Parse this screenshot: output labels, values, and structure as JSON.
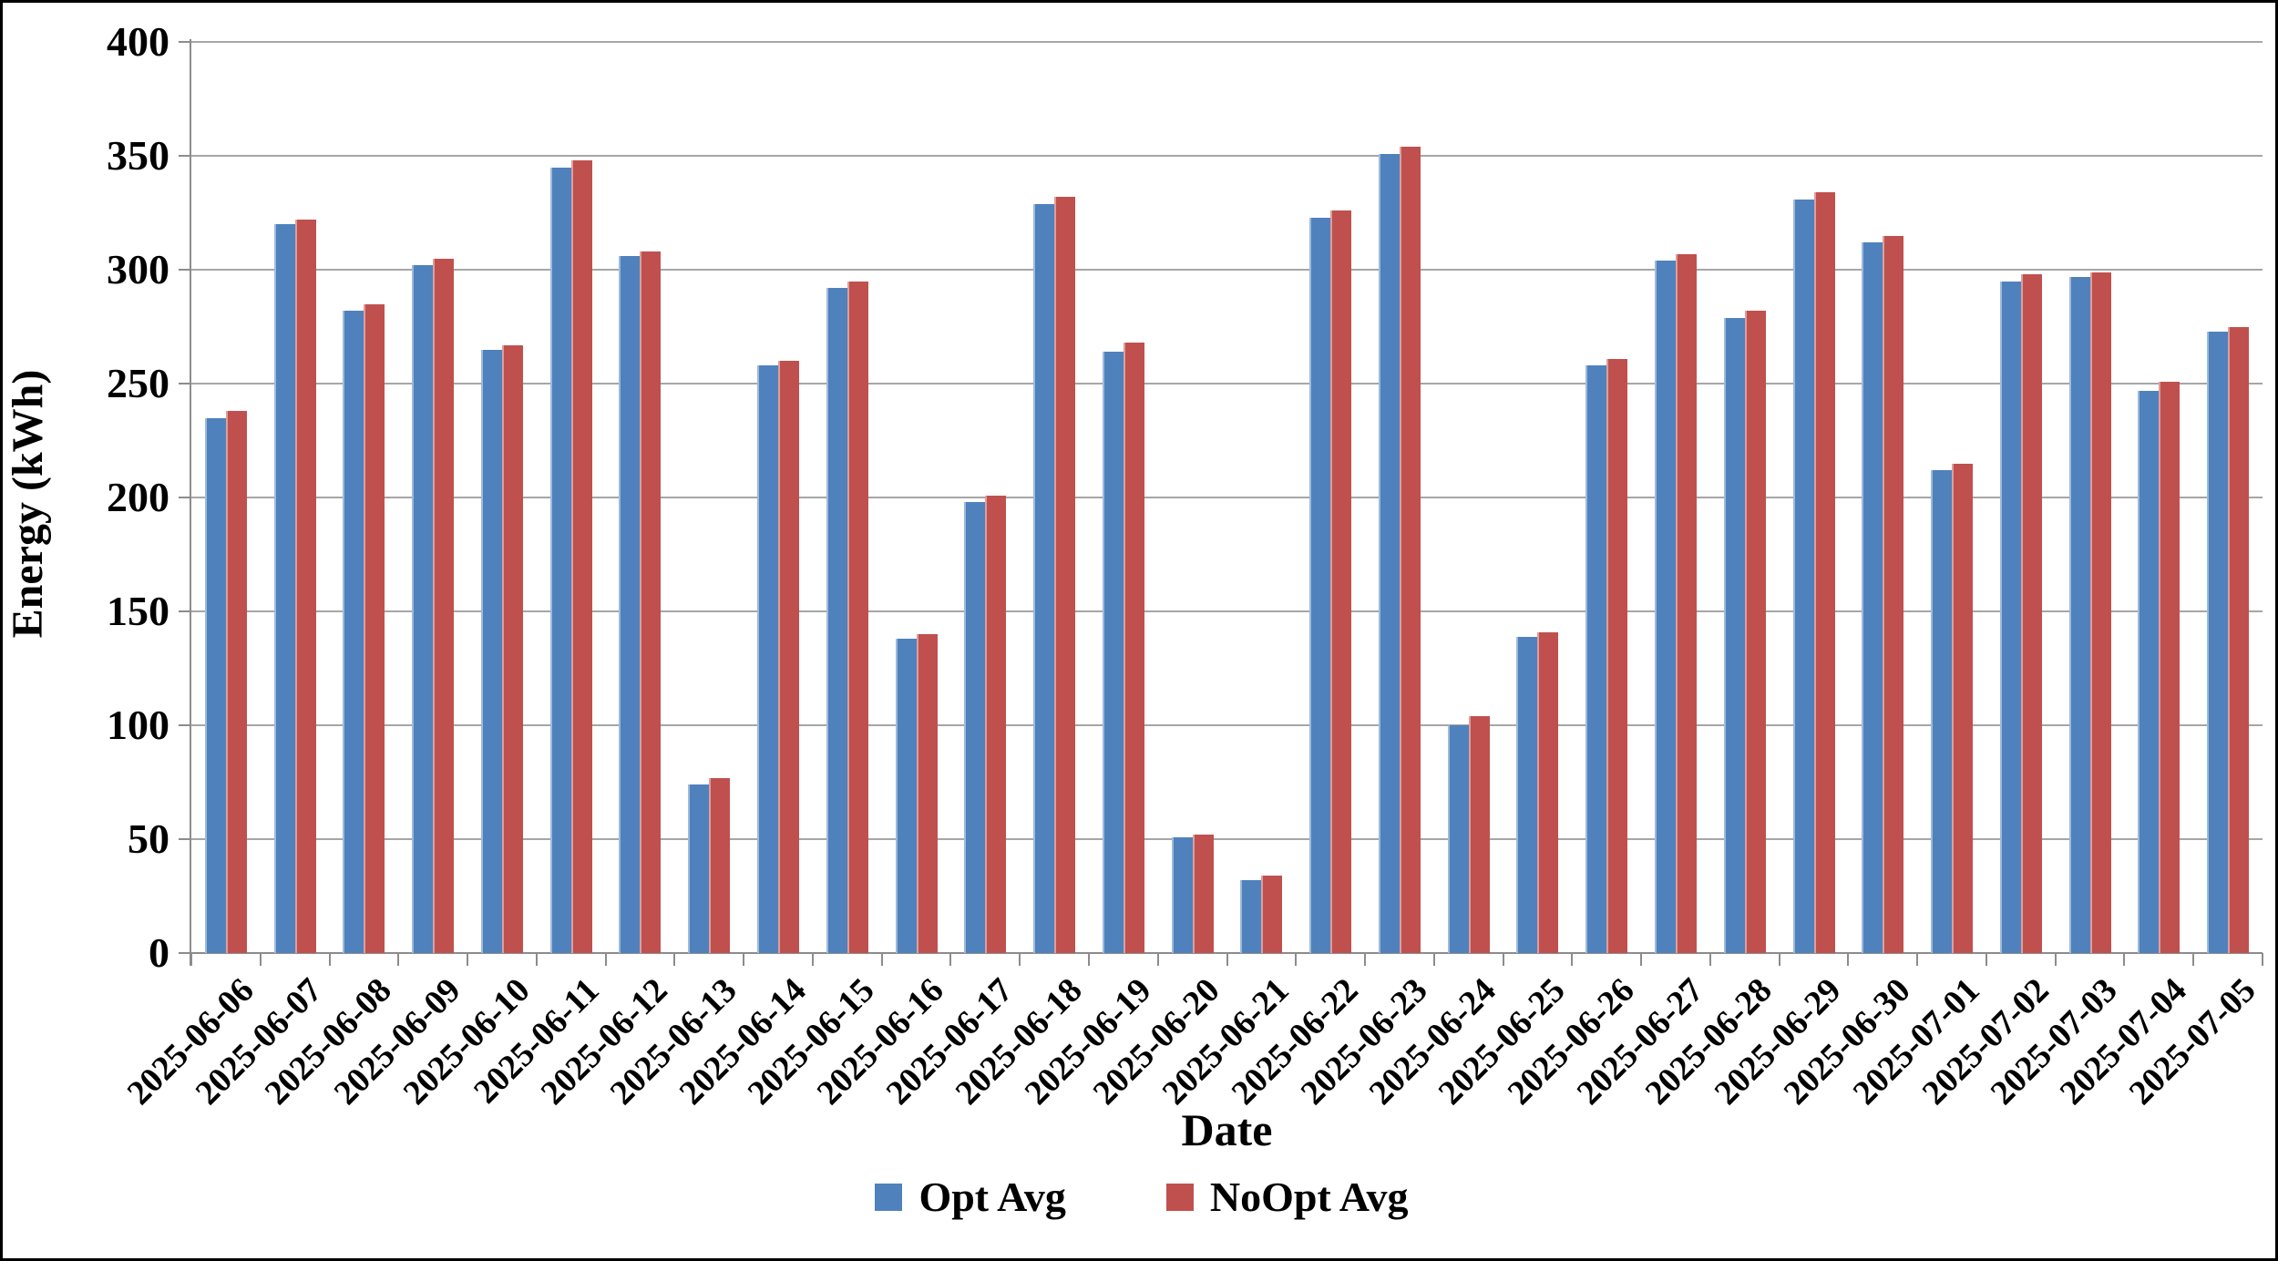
{
  "chart_data": {
    "type": "bar",
    "title": "",
    "xlabel": "Date",
    "ylabel": "Energy (kWh)",
    "ylim": [
      0,
      400
    ],
    "ytick_step": 50,
    "yticks": [
      0,
      50,
      100,
      150,
      200,
      250,
      300,
      350,
      400
    ],
    "grid": true,
    "legend_position": "bottom",
    "categories": [
      "2025-06-06",
      "2025-06-07",
      "2025-06-08",
      "2025-06-09",
      "2025-06-10",
      "2025-06-11",
      "2025-06-12",
      "2025-06-13",
      "2025-06-14",
      "2025-06-15",
      "2025-06-16",
      "2025-06-17",
      "2025-06-18",
      "2025-06-19",
      "2025-06-20",
      "2025-06-21",
      "2025-06-22",
      "2025-06-23",
      "2025-06-24",
      "2025-06-25",
      "2025-06-26",
      "2025-06-27",
      "2025-06-28",
      "2025-06-29",
      "2025-06-30",
      "2025-07-01",
      "2025-07-02",
      "2025-07-03",
      "2025-07-04",
      "2025-07-05"
    ],
    "series": [
      {
        "name": "Opt Avg",
        "color": "#4F81BD",
        "values": [
          235,
          320,
          282,
          302,
          265,
          345,
          306,
          74,
          258,
          292,
          138,
          198,
          329,
          264,
          51,
          32,
          323,
          351,
          100,
          139,
          258,
          304,
          279,
          331,
          312,
          212,
          295,
          297,
          247,
          273
        ]
      },
      {
        "name": "NoOpt Avg",
        "color": "#C0504D",
        "values": [
          238,
          322,
          285,
          305,
          267,
          348,
          308,
          77,
          260,
          295,
          140,
          201,
          332,
          268,
          52,
          34,
          326,
          354,
          104,
          141,
          261,
          307,
          282,
          334,
          315,
          215,
          298,
          299,
          251,
          275
        ]
      }
    ]
  },
  "colors": {
    "gridline": "#A6A6A6",
    "axis": "#8C8C8C",
    "text": "#000000",
    "background": "#FFFFFF",
    "border": "#000000"
  }
}
